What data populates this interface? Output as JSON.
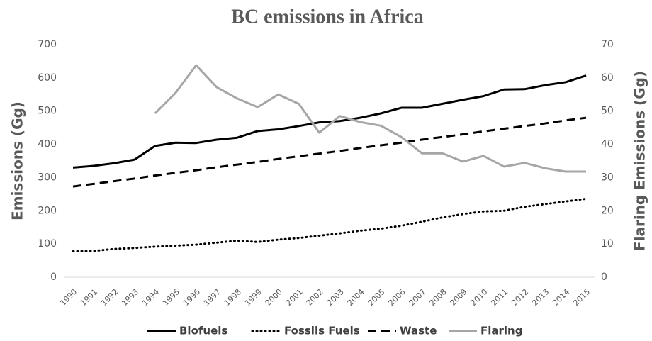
{
  "chart_data": {
    "type": "line",
    "title": "BC emissions in Africa",
    "y_label": "Emissions  (Gg)",
    "y2_label": "Flaring Emissions  (Gg)",
    "categories": [
      "1990",
      "1991",
      "1992",
      "1993",
      "1994",
      "1995",
      "1996",
      "1997",
      "1998",
      "1999",
      "2000",
      "2001",
      "2002",
      "2003",
      "2004",
      "2005",
      "2006",
      "2007",
      "2008",
      "2009",
      "2010",
      "2011",
      "2012",
      "2013",
      "2014",
      "2015"
    ],
    "ylim": [
      0,
      700
    ],
    "yticks": [
      0,
      100,
      200,
      300,
      400,
      500,
      600,
      700
    ],
    "y2lim": [
      0,
      70
    ],
    "y2ticks": [
      0,
      10,
      20,
      30,
      40,
      50,
      60,
      70
    ],
    "grid": false,
    "legend": "bottom",
    "series": [
      {
        "name": "Biofuels",
        "color": "#000000",
        "dash": "solid",
        "values": [
          330,
          335,
          343,
          354,
          395,
          405,
          404,
          414,
          420,
          440,
          445,
          455,
          466,
          470,
          480,
          493,
          510,
          510,
          522,
          534,
          545,
          565,
          566,
          578,
          587,
          607
        ]
      },
      {
        "name": "Fossils Fuels",
        "color": "#000000",
        "dash": "dotted",
        "values": [
          78,
          79,
          85,
          88,
          92,
          95,
          98,
          104,
          110,
          106,
          113,
          118,
          125,
          132,
          140,
          146,
          155,
          167,
          180,
          190,
          198,
          200,
          212,
          220,
          228,
          236
        ]
      },
      {
        "name": "Waste",
        "color": "#000000",
        "dash": "dashed",
        "values": [
          273,
          281,
          289,
          297,
          306,
          314,
          322,
          331,
          339,
          347,
          356,
          364,
          372,
          380,
          389,
          397,
          405,
          414,
          422,
          430,
          439,
          447,
          455,
          463,
          472,
          480
        ]
      },
      {
        "name": "Flaring",
        "color": "#a6a6a6",
        "dash": "solid",
        "axis": "y2",
        "values": [
          null,
          null,
          null,
          null,
          49.3,
          55.5,
          63.8,
          57.2,
          53.8,
          51.2,
          55,
          52.2,
          43.5,
          48.5,
          46.7,
          45.6,
          42.2,
          37.3,
          37.3,
          34.8,
          36.5,
          33.3,
          34.4,
          32.8,
          31.8,
          31.8
        ]
      }
    ]
  }
}
